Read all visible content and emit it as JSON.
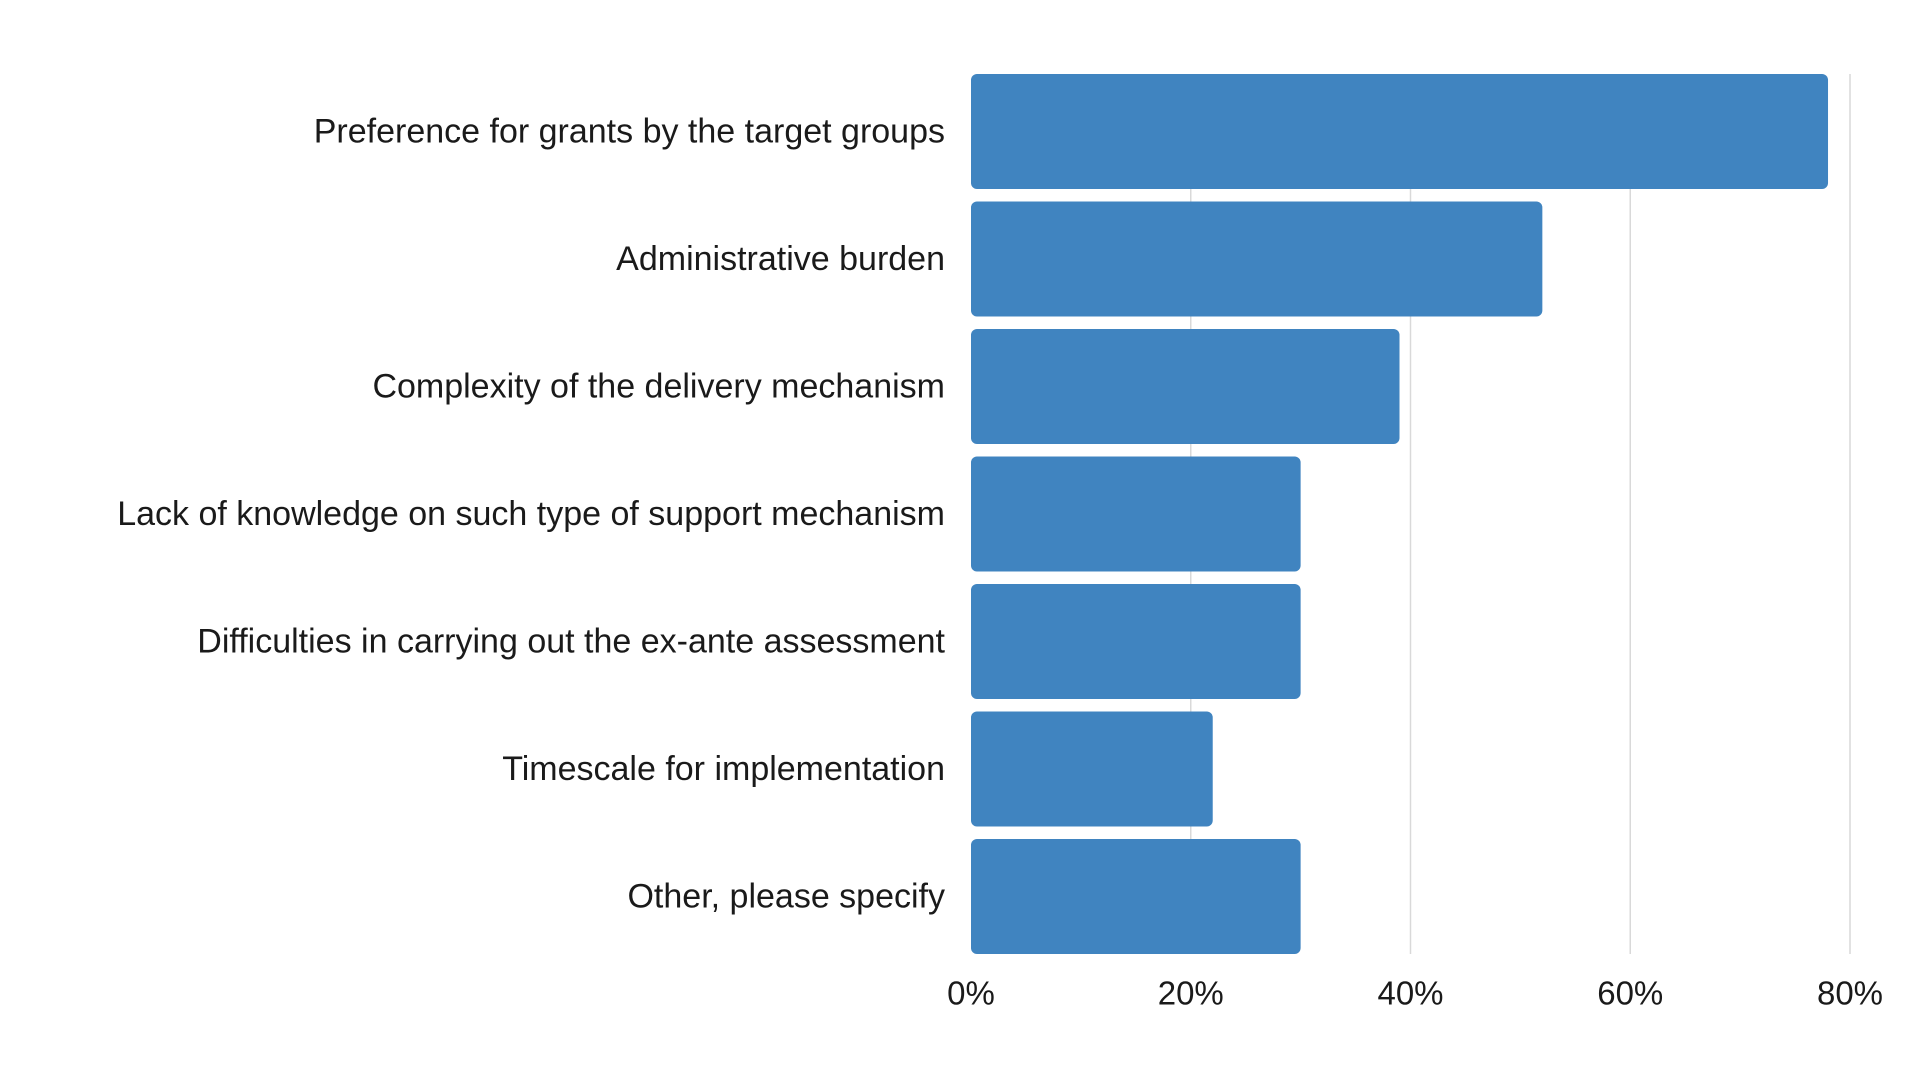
{
  "chart_data": {
    "type": "bar",
    "orientation": "horizontal",
    "categories": [
      "Preference for grants by the target groups",
      "Administrative burden",
      "Complexity of the delivery mechanism",
      "Lack of knowledge on such type of support mechanism",
      "Difficulties in carrying out the ex-ante assessment",
      "Timescale for implementation",
      "Other, please specify"
    ],
    "values": [
      78,
      52,
      39,
      30,
      30,
      22,
      30
    ],
    "xlim": [
      0,
      80
    ],
    "xticks": [
      0,
      20,
      40,
      60,
      80
    ],
    "tick_labels": [
      "0%",
      "20%",
      "40%",
      "60%",
      "80%"
    ],
    "value_unit": "%",
    "grid": "vertical",
    "legend": "none",
    "title": "",
    "xlabel": "",
    "ylabel": "",
    "bar_color": "#4084c0",
    "grid_color": "#d9d9d9"
  }
}
